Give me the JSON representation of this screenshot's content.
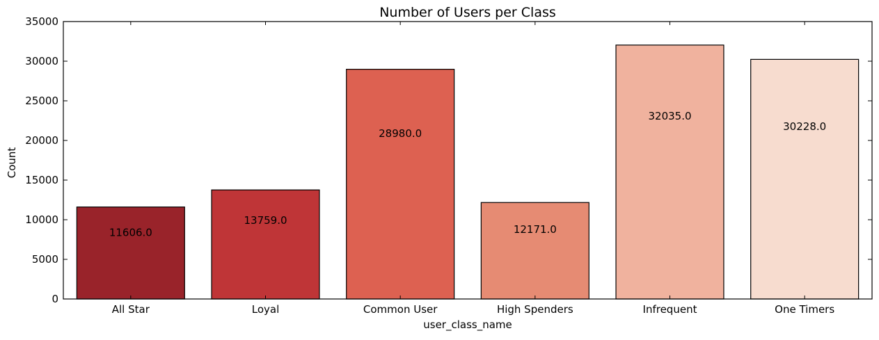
{
  "chart_data": {
    "type": "bar",
    "title": "Number of Users per Class",
    "xlabel": "user_class_name",
    "ylabel": "Count",
    "categories": [
      "All Star",
      "Loyal",
      "Common User",
      "High Spenders",
      "Infrequent",
      "One Timers"
    ],
    "values": [
      11606.0,
      13759.0,
      28980.0,
      12171.0,
      32035.0,
      30228.0
    ],
    "value_labels": [
      "11606.0",
      "13759.0",
      "28980.0",
      "12171.0",
      "32035.0",
      "30228.0"
    ],
    "bar_colors": [
      "#99232a",
      "#bf3537",
      "#dd6151",
      "#e68b73",
      "#f0b29e",
      "#f7dccf"
    ],
    "ylim": [
      0,
      35000
    ],
    "yticks": [
      0,
      5000,
      10000,
      15000,
      20000,
      25000,
      30000,
      35000
    ],
    "ytick_labels": [
      "0",
      "5000",
      "10000",
      "15000",
      "20000",
      "25000",
      "30000",
      "35000"
    ],
    "grid": false,
    "legend": false
  }
}
